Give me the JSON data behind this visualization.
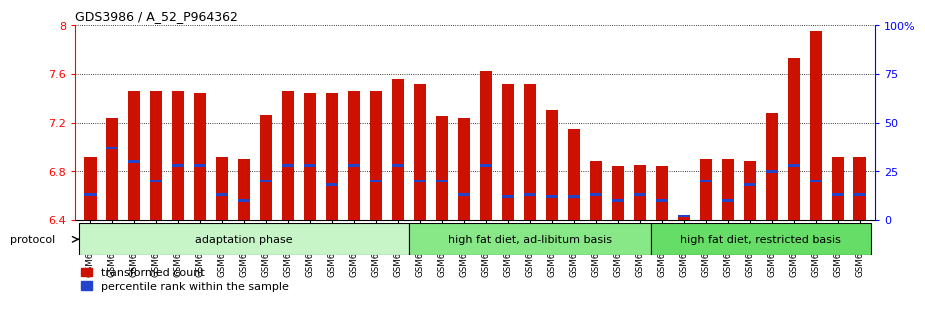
{
  "title": "GDS3986 / A_52_P964362",
  "samples": [
    "GSM672364",
    "GSM672365",
    "GSM672366",
    "GSM672367",
    "GSM672368",
    "GSM672369",
    "GSM672370",
    "GSM672371",
    "GSM672372",
    "GSM672373",
    "GSM672374",
    "GSM672375",
    "GSM672376",
    "GSM672377",
    "GSM672378",
    "GSM672379",
    "GSM672380",
    "GSM672381",
    "GSM672382",
    "GSM672383",
    "GSM672384",
    "GSM672385",
    "GSM672386",
    "GSM672387",
    "GSM672388",
    "GSM672389",
    "GSM672390",
    "GSM672391",
    "GSM672392",
    "GSM672393",
    "GSM672394",
    "GSM672395",
    "GSM672396",
    "GSM672397",
    "GSM672398",
    "GSM672399"
  ],
  "red_values": [
    6.92,
    7.24,
    7.46,
    7.46,
    7.46,
    7.44,
    6.92,
    6.9,
    7.26,
    7.46,
    7.44,
    7.44,
    7.46,
    7.46,
    7.56,
    7.52,
    7.25,
    7.24,
    7.62,
    7.52,
    7.52,
    7.3,
    7.15,
    6.88,
    6.84,
    6.85,
    6.84,
    6.42,
    6.9,
    6.9,
    6.88,
    7.28,
    7.73,
    7.95,
    6.92,
    6.92
  ],
  "blue_percentile": [
    13,
    37,
    30,
    20,
    28,
    28,
    13,
    10,
    20,
    28,
    28,
    18,
    28,
    20,
    28,
    20,
    20,
    13,
    28,
    12,
    13,
    12,
    12,
    13,
    10,
    13,
    10,
    2,
    20,
    10,
    18,
    25,
    28,
    20,
    13,
    13
  ],
  "groups": [
    {
      "label": "adaptation phase",
      "start": 0,
      "end": 15,
      "color": "#c8f5c8"
    },
    {
      "label": "high fat diet, ad-libitum basis",
      "start": 15,
      "end": 26,
      "color": "#88e888"
    },
    {
      "label": "high fat diet, restricted basis",
      "start": 26,
      "end": 36,
      "color": "#66dd66"
    }
  ],
  "ymin": 6.4,
  "ymax": 8.0,
  "yticks": [
    6.4,
    6.8,
    7.2,
    7.6,
    8.0
  ],
  "ytick_labels": [
    "6.4",
    "6.8",
    "7.2",
    "7.6",
    "8"
  ],
  "right_yticks": [
    0,
    25,
    50,
    75,
    100
  ],
  "right_ytick_labels": [
    "0",
    "25",
    "50",
    "75",
    "100%"
  ],
  "bar_color": "#cc1100",
  "blue_color": "#2244cc",
  "bar_width": 0.55,
  "protocol_label": "protocol",
  "legend_red": "transformed count",
  "legend_blue": "percentile rank within the sample"
}
